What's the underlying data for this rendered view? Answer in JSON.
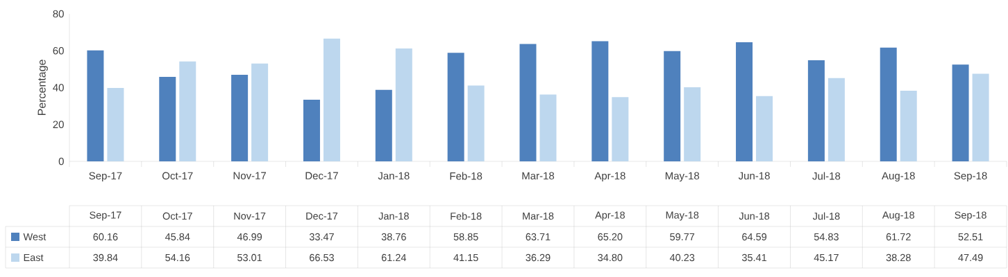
{
  "chart_data": {
    "type": "bar",
    "ylabel": "Percentage",
    "categories": [
      "Sep-17",
      "Oct-17",
      "Nov-17",
      "Dec-17",
      "Jan-18",
      "Feb-18",
      "Mar-18",
      "Apr-18",
      "May-18",
      "Jun-18",
      "Jul-18",
      "Aug-18",
      "Sep-18"
    ],
    "series": [
      {
        "name": "West",
        "color": "#4f81bd",
        "values": [
          60.16,
          45.84,
          46.99,
          33.47,
          38.76,
          58.85,
          63.71,
          65.2,
          59.77,
          64.59,
          54.83,
          61.72,
          52.51
        ],
        "value_labels": [
          "60.16",
          "45.84",
          "46.99",
          "33.47",
          "38.76",
          "58.85",
          "63.71",
          "65.20",
          "59.77",
          "64.59",
          "54.83",
          "61.72",
          "52.51"
        ]
      },
      {
        "name": "East",
        "color": "#bdd7ee",
        "values": [
          39.84,
          54.16,
          53.01,
          66.53,
          61.24,
          41.15,
          36.29,
          34.8,
          40.23,
          35.41,
          45.17,
          38.28,
          47.49
        ],
        "value_labels": [
          "39.84",
          "54.16",
          "53.01",
          "66.53",
          "61.24",
          "41.15",
          "36.29",
          "34.80",
          "40.23",
          "35.41",
          "45.17",
          "38.28",
          "47.49"
        ]
      }
    ],
    "ylim": [
      0,
      80
    ],
    "yticks": [
      0,
      20,
      40,
      60,
      80
    ],
    "grid": false,
    "legend": "bottom"
  }
}
